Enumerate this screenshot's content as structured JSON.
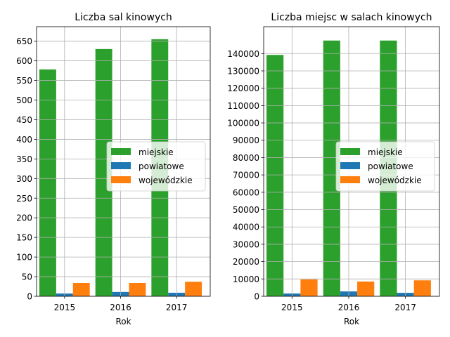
{
  "chart_data": [
    {
      "type": "bar",
      "title": "Liczba sal kinowych",
      "xlabel": "Rok",
      "ylabel": "",
      "categories": [
        "2015",
        "2016",
        "2017"
      ],
      "ylim": [
        0,
        687
      ],
      "yticks": [
        0,
        50,
        100,
        150,
        200,
        250,
        300,
        350,
        400,
        450,
        500,
        550,
        600,
        650
      ],
      "grid": true,
      "legend_position": "center-right",
      "series": [
        {
          "name": "miejskie",
          "color": "#2ca02c",
          "values": [
            578,
            630,
            655
          ]
        },
        {
          "name": "powiatowe",
          "color": "#1f77b4",
          "values": [
            7,
            11,
            9
          ]
        },
        {
          "name": "wojewódzkie",
          "color": "#ff7f0e",
          "values": [
            34,
            34,
            37
          ]
        }
      ]
    },
    {
      "type": "bar",
      "title": "Liczba miejsc w salach kinowych",
      "xlabel": "Rok",
      "ylabel": "",
      "categories": [
        "2015",
        "2016",
        "2017"
      ],
      "ylim": [
        0,
        155500
      ],
      "yticks": [
        0,
        10000,
        20000,
        30000,
        40000,
        50000,
        60000,
        70000,
        80000,
        90000,
        100000,
        110000,
        120000,
        130000,
        140000
      ],
      "grid": true,
      "legend_position": "center-right",
      "series": [
        {
          "name": "miejskie",
          "color": "#2ca02c",
          "values": [
            139200,
            147500,
            147500
          ]
        },
        {
          "name": "powiatowe",
          "color": "#1f77b4",
          "values": [
            1600,
            2800,
            2000
          ]
        },
        {
          "name": "wojewódzkie",
          "color": "#ff7f0e",
          "values": [
            9700,
            8500,
            9200
          ]
        }
      ]
    }
  ]
}
